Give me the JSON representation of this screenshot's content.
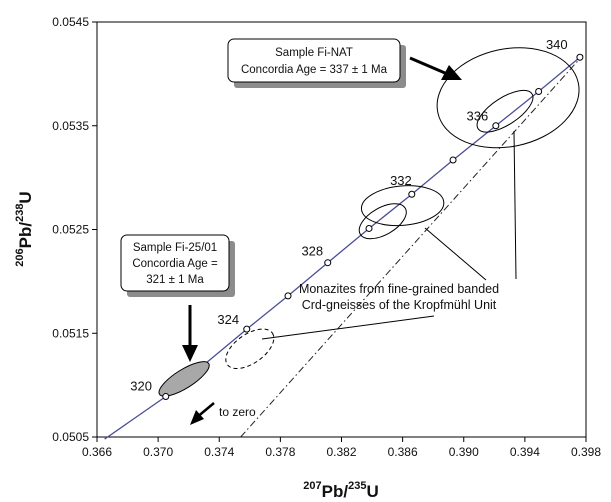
{
  "chart_data": {
    "type": "scatter",
    "xlabel": {
      "sup": "207",
      "main": "Pb/",
      "sup2": "235",
      "main2": "U"
    },
    "ylabel": {
      "sup": "206",
      "main": "Pb/",
      "sup2": "238",
      "main2": "U"
    },
    "xlim": [
      0.366,
      0.398
    ],
    "ylim": [
      0.0505,
      0.0545
    ],
    "x_ticks": [
      "0.366",
      "0.370",
      "0.374",
      "0.378",
      "0.382",
      "0.386",
      "0.390",
      "0.394",
      "0.398"
    ],
    "y_ticks": [
      "0.0505",
      "0.0515",
      "0.0525",
      "0.0535",
      "0.0545"
    ],
    "x_tick_values": [
      0.366,
      0.37,
      0.374,
      0.378,
      0.382,
      0.386,
      0.39,
      0.394,
      0.398
    ],
    "y_tick_values": [
      0.0505,
      0.0515,
      0.0525,
      0.0535,
      0.0545
    ],
    "grid": false,
    "concordia": {
      "points": [
        {
          "x": 0.3665,
          "y": 0.05048
        },
        {
          "x": 0.3705,
          "y": 0.05089
        },
        {
          "x": 0.3758,
          "y": 0.05154
        },
        {
          "x": 0.3785,
          "y": 0.05186
        },
        {
          "x": 0.3811,
          "y": 0.05218
        },
        {
          "x": 0.3838,
          "y": 0.05251
        },
        {
          "x": 0.3866,
          "y": 0.05284
        },
        {
          "x": 0.3893,
          "y": 0.05317
        },
        {
          "x": 0.3921,
          "y": 0.0535
        },
        {
          "x": 0.3949,
          "y": 0.05383
        },
        {
          "x": 0.3976,
          "y": 0.05416
        }
      ],
      "markers": [
        {
          "x": 0.3705,
          "y": 0.05089
        },
        {
          "x": 0.3758,
          "y": 0.05154
        },
        {
          "x": 0.3785,
          "y": 0.05186
        },
        {
          "x": 0.3811,
          "y": 0.05218
        },
        {
          "x": 0.3838,
          "y": 0.05251
        },
        {
          "x": 0.3866,
          "y": 0.05284
        },
        {
          "x": 0.3893,
          "y": 0.05317
        },
        {
          "x": 0.3921,
          "y": 0.0535
        },
        {
          "x": 0.3949,
          "y": 0.05383
        },
        {
          "x": 0.3976,
          "y": 0.05416
        }
      ],
      "age_labels": [
        {
          "text": "320",
          "x": 0.3696,
          "y": 0.05095
        },
        {
          "text": "324",
          "x": 0.3753,
          "y": 0.05159
        },
        {
          "text": "328",
          "x": 0.3808,
          "y": 0.05225
        },
        {
          "text": "332",
          "x": 0.3866,
          "y": 0.05293
        },
        {
          "text": "336",
          "x": 0.3916,
          "y": 0.05355
        },
        {
          "text": "340",
          "x": 0.3968,
          "y": 0.05424
        }
      ]
    },
    "discordia": [
      {
        "x": 0.3754,
        "y": 0.0505
      },
      {
        "x": 0.3978,
        "y": 0.05418
      }
    ],
    "error_ellipses": [
      {
        "cx": 0.3717,
        "cy": 0.05106,
        "rx": 0.0019,
        "ry": 9e-05,
        "angle_deg": -32,
        "filled": true,
        "dashed": false
      },
      {
        "cx": 0.376,
        "cy": 0.05135,
        "rx": 0.0018,
        "ry": 0.00014,
        "angle_deg": -35,
        "filled": false,
        "dashed": true
      },
      {
        "cx": 0.3847,
        "cy": 0.05258,
        "rx": 0.0017,
        "ry": 0.00013,
        "angle_deg": -30,
        "filled": false,
        "dashed": false
      },
      {
        "cx": 0.386,
        "cy": 0.05273,
        "rx": 0.0027,
        "ry": 0.00019,
        "angle_deg": -5,
        "filled": false,
        "dashed": false
      },
      {
        "cx": 0.3927,
        "cy": 0.05364,
        "rx": 0.0021,
        "ry": 0.00013,
        "angle_deg": -33,
        "filled": false,
        "dashed": false
      },
      {
        "cx": 0.3929,
        "cy": 0.05377,
        "rx": 0.0047,
        "ry": 0.00047,
        "angle_deg": -12,
        "filled": false,
        "dashed": false
      }
    ],
    "annotations": {
      "fi_nat_lines": [
        "Sample Fi-NAT",
        "Concordia Age = 337 ± 1 Ma"
      ],
      "fi_2501_lines": [
        "Sample Fi-25/01",
        "Concordia Age =",
        "321 ± 1 Ma"
      ],
      "monazite_lines": [
        "Monazites from fine-grained banded",
        "Crd-gneisses of the Kropfmühl Unit"
      ],
      "to_zero": "to zero"
    }
  }
}
